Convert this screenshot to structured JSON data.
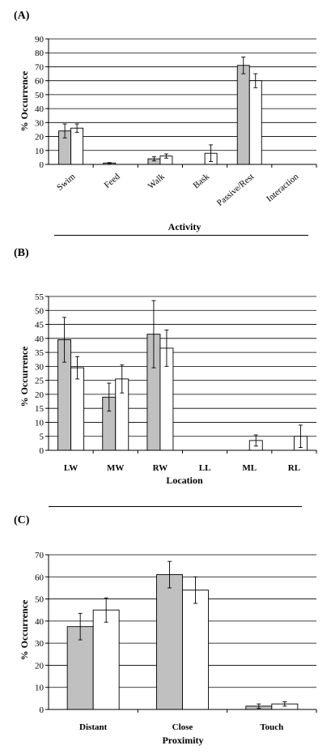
{
  "chart_data": [
    {
      "panel": "(A)",
      "type": "bar",
      "xlabel": "Activity",
      "ylabel": "% Occurrence",
      "ylim": [
        0,
        90
      ],
      "yticks": [
        0,
        10,
        20,
        30,
        40,
        50,
        60,
        70,
        80,
        90
      ],
      "categories": [
        "Swim",
        "Feed",
        "Walk",
        "Bask",
        "Passive/Rest",
        "Interaction"
      ],
      "series": [
        {
          "values": [
            24,
            1,
            4,
            0,
            71,
            0
          ],
          "errors": [
            5,
            0.3,
            1.5,
            0,
            6,
            0
          ],
          "color": "#c0c0c0"
        },
        {
          "values": [
            26,
            0,
            6,
            8,
            60,
            0
          ],
          "errors": [
            3,
            0,
            1.5,
            6,
            5,
            0
          ],
          "color": "#ffffff"
        }
      ],
      "grid": true
    },
    {
      "panel": "(B)",
      "type": "bar",
      "xlabel": "Location",
      "ylabel": "% Occurrence",
      "ylim": [
        0,
        55
      ],
      "yticks": [
        0,
        5,
        10,
        15,
        20,
        25,
        30,
        35,
        40,
        45,
        50,
        55
      ],
      "categories": [
        "LW",
        "MW",
        "RW",
        "LL",
        "ML",
        "RL"
      ],
      "series": [
        {
          "values": [
            39.5,
            19,
            41.5,
            0,
            0,
            0
          ],
          "errors": [
            8,
            5,
            12,
            0,
            0,
            0
          ],
          "color": "#c0c0c0"
        },
        {
          "values": [
            29.5,
            25.5,
            36.5,
            0,
            3.5,
            5
          ],
          "errors": [
            4,
            5,
            6.5,
            0,
            2,
            4
          ],
          "color": "#ffffff"
        }
      ],
      "grid": true
    },
    {
      "panel": "(C)",
      "type": "bar",
      "xlabel": "Proximity",
      "ylabel": "% Occurrence",
      "ylim": [
        0,
        70
      ],
      "yticks": [
        0,
        10,
        20,
        30,
        40,
        50,
        60,
        70
      ],
      "categories": [
        "Distant",
        "Close",
        "Touch"
      ],
      "series": [
        {
          "values": [
            37.5,
            61,
            1.5
          ],
          "errors": [
            6,
            6,
            1
          ],
          "color": "#c0c0c0"
        },
        {
          "values": [
            45,
            54,
            2.5
          ],
          "errors": [
            5.5,
            6,
            1
          ],
          "color": "#ffffff"
        }
      ],
      "grid": true
    }
  ]
}
